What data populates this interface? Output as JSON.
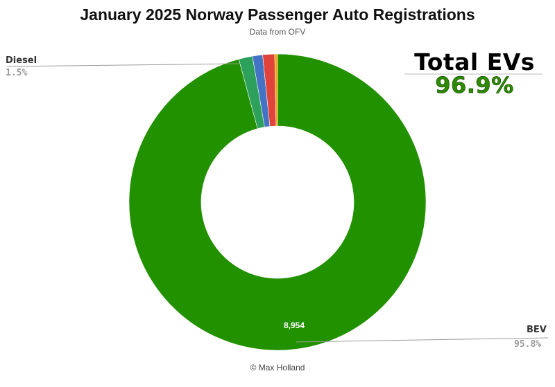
{
  "header": {
    "title": "January 2025 Norway Passenger Auto Registrations",
    "subtitle": "Data from OFV"
  },
  "highlight": {
    "label": "Total EVs",
    "value": "96.9%",
    "value_color": "#2e8b00"
  },
  "callouts": {
    "diesel": {
      "name": "Diesel",
      "pct": "1.5%"
    },
    "bev": {
      "name": "BEV",
      "pct": "95.8%"
    }
  },
  "credit": "© Max Holland",
  "chart_data": {
    "type": "pie",
    "donut": true,
    "title": "January 2025 Norway Passenger Auto Registrations",
    "subtitle": "Data from OFV",
    "data_labels": {
      "BEV": "8,954"
    },
    "slices": [
      {
        "name": "BEV",
        "percent": 95.8,
        "value": 8954,
        "color": "#229100"
      },
      {
        "name": "Diesel",
        "percent": 1.5,
        "color": "#2da05c"
      },
      {
        "percent": 1.1,
        "color": "#4472c4"
      },
      {
        "percent": 1.3,
        "color": "#e0433a"
      },
      {
        "percent": 0.3,
        "color": "#f5a300"
      }
    ]
  }
}
